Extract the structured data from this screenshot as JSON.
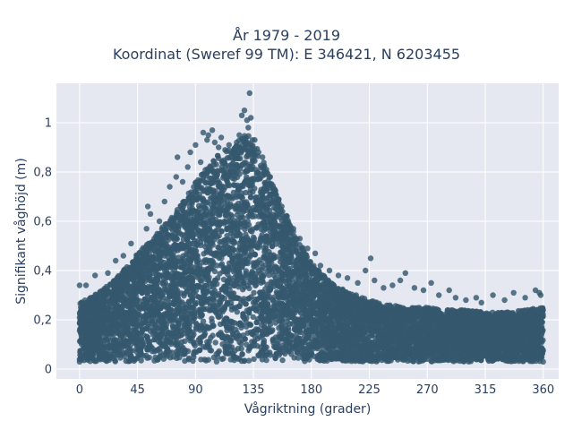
{
  "chart_data": {
    "type": "scatter",
    "title_lines": [
      "År 1979 - 2019",
      "Koordinat (Sweref 99 TM): E 346421, N 6203455"
    ],
    "xlabel": "Vågriktning (grader)",
    "ylabel": "Signifikant våghöjd (m)",
    "xlim": [
      -18,
      372
    ],
    "ylim": [
      -0.04,
      1.16
    ],
    "xticks": [
      0,
      45,
      90,
      135,
      180,
      225,
      270,
      315,
      360
    ],
    "xtick_labels": [
      "0",
      "45",
      "90",
      "135",
      "180",
      "225",
      "270",
      "315",
      "360"
    ],
    "yticks": [
      0,
      0.2,
      0.4,
      0.6,
      0.8,
      1
    ],
    "ytick_labels": [
      "0",
      "0,2",
      "0,4",
      "0,6",
      "0,8",
      "1"
    ],
    "grid": true,
    "legend": "none",
    "marker_color": "#34586e",
    "plot_background": "#e5e8f0",
    "envelope": {
      "direction": [
        0,
        15,
        30,
        45,
        60,
        75,
        90,
        105,
        120,
        128,
        135,
        150,
        165,
        180,
        195,
        210,
        225,
        240,
        255,
        270,
        285,
        300,
        315,
        330,
        345,
        360
      ],
      "max_height": [
        0.27,
        0.31,
        0.38,
        0.47,
        0.55,
        0.64,
        0.76,
        0.86,
        0.9,
        0.96,
        0.93,
        0.76,
        0.57,
        0.43,
        0.35,
        0.31,
        0.28,
        0.26,
        0.25,
        0.25,
        0.24,
        0.24,
        0.23,
        0.23,
        0.24,
        0.25
      ],
      "min_height": [
        0.03,
        0.03,
        0.03,
        0.03,
        0.03,
        0.03,
        0.03,
        0.03,
        0.03,
        0.03,
        0.03,
        0.03,
        0.03,
        0.03,
        0.03,
        0.03,
        0.03,
        0.03,
        0.03,
        0.03,
        0.03,
        0.03,
        0.03,
        0.03,
        0.03,
        0.03
      ]
    },
    "outliers": [
      {
        "x": 0,
        "y": 0.34
      },
      {
        "x": 5,
        "y": 0.34
      },
      {
        "x": 12,
        "y": 0.38
      },
      {
        "x": 22,
        "y": 0.39
      },
      {
        "x": 28,
        "y": 0.44
      },
      {
        "x": 34,
        "y": 0.46
      },
      {
        "x": 40,
        "y": 0.51
      },
      {
        "x": 52,
        "y": 0.57
      },
      {
        "x": 53,
        "y": 0.66
      },
      {
        "x": 55,
        "y": 0.63
      },
      {
        "x": 62,
        "y": 0.6
      },
      {
        "x": 66,
        "y": 0.68
      },
      {
        "x": 70,
        "y": 0.74
      },
      {
        "x": 75,
        "y": 0.78
      },
      {
        "x": 76,
        "y": 0.86
      },
      {
        "x": 80,
        "y": 0.76
      },
      {
        "x": 84,
        "y": 0.82
      },
      {
        "x": 86,
        "y": 0.88
      },
      {
        "x": 90,
        "y": 0.91
      },
      {
        "x": 94,
        "y": 0.84
      },
      {
        "x": 96,
        "y": 0.96
      },
      {
        "x": 99,
        "y": 0.93
      },
      {
        "x": 100,
        "y": 0.95
      },
      {
        "x": 103,
        "y": 0.97
      },
      {
        "x": 105,
        "y": 0.92
      },
      {
        "x": 108,
        "y": 0.9
      },
      {
        "x": 110,
        "y": 0.94
      },
      {
        "x": 113,
        "y": 0.89
      },
      {
        "x": 116,
        "y": 0.91
      },
      {
        "x": 119,
        "y": 0.88
      },
      {
        "x": 122,
        "y": 0.92
      },
      {
        "x": 124,
        "y": 0.95
      },
      {
        "x": 126,
        "y": 1.03
      },
      {
        "x": 128,
        "y": 1.05
      },
      {
        "x": 130,
        "y": 1.01
      },
      {
        "x": 131,
        "y": 0.98
      },
      {
        "x": 133,
        "y": 1.02
      },
      {
        "x": 132,
        "y": 1.12
      },
      {
        "x": 136,
        "y": 0.93
      },
      {
        "x": 139,
        "y": 0.88
      },
      {
        "x": 142,
        "y": 0.86
      },
      {
        "x": 145,
        "y": 0.81
      },
      {
        "x": 148,
        "y": 0.78
      },
      {
        "x": 152,
        "y": 0.72
      },
      {
        "x": 157,
        "y": 0.66
      },
      {
        "x": 161,
        "y": 0.62
      },
      {
        "x": 166,
        "y": 0.57
      },
      {
        "x": 171,
        "y": 0.53
      },
      {
        "x": 177,
        "y": 0.49
      },
      {
        "x": 183,
        "y": 0.47
      },
      {
        "x": 187,
        "y": 0.42
      },
      {
        "x": 194,
        "y": 0.4
      },
      {
        "x": 201,
        "y": 0.38
      },
      {
        "x": 208,
        "y": 0.37
      },
      {
        "x": 216,
        "y": 0.35
      },
      {
        "x": 222,
        "y": 0.4
      },
      {
        "x": 226,
        "y": 0.45
      },
      {
        "x": 229,
        "y": 0.36
      },
      {
        "x": 236,
        "y": 0.33
      },
      {
        "x": 243,
        "y": 0.34
      },
      {
        "x": 249,
        "y": 0.36
      },
      {
        "x": 253,
        "y": 0.39
      },
      {
        "x": 260,
        "y": 0.33
      },
      {
        "x": 267,
        "y": 0.32
      },
      {
        "x": 273,
        "y": 0.35
      },
      {
        "x": 279,
        "y": 0.3
      },
      {
        "x": 287,
        "y": 0.32
      },
      {
        "x": 292,
        "y": 0.29
      },
      {
        "x": 300,
        "y": 0.28
      },
      {
        "x": 308,
        "y": 0.29
      },
      {
        "x": 312,
        "y": 0.27
      },
      {
        "x": 321,
        "y": 0.3
      },
      {
        "x": 330,
        "y": 0.28
      },
      {
        "x": 337,
        "y": 0.31
      },
      {
        "x": 346,
        "y": 0.29
      },
      {
        "x": 354,
        "y": 0.32
      },
      {
        "x": 357,
        "y": 0.31
      },
      {
        "x": 358,
        "y": 0.3
      },
      {
        "x": 0,
        "y": 0.03
      },
      {
        "x": 360,
        "y": 0.03
      }
    ],
    "bulk_point_count": 9000
  }
}
